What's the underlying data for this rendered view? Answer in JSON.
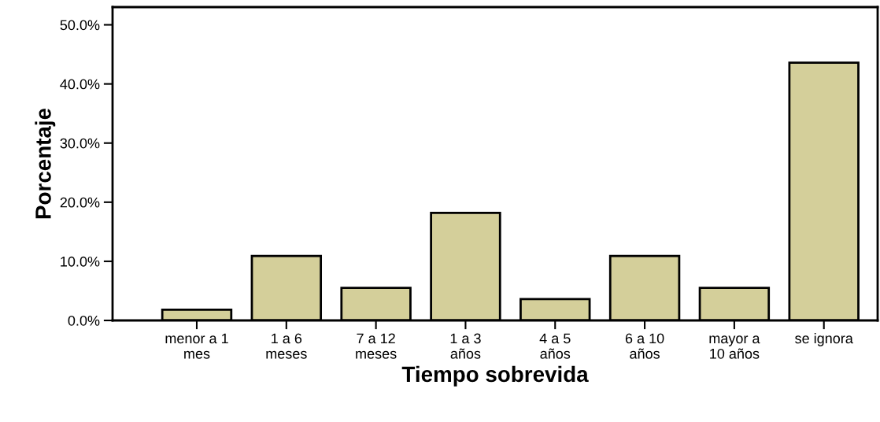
{
  "chart_data": {
    "type": "bar",
    "xlabel": "Tiempo sobrevida",
    "ylabel": "Porcentaje",
    "categories": [
      "menor a 1\nmes",
      "1 a 6\nmeses",
      "7 a 12\nmeses",
      "1 a 3\naños",
      "4 a 5\naños",
      "6 a 10\naños",
      "mayor a\n10 años",
      "se ignora"
    ],
    "values": [
      1.8,
      10.9,
      5.5,
      18.2,
      3.6,
      10.9,
      5.5,
      43.6
    ],
    "color": "#d4cf9a",
    "ylim": [
      0,
      53
    ],
    "yticks": [
      {
        "value": 0,
        "label": "0.0%"
      },
      {
        "value": 10,
        "label": "10.0%"
      },
      {
        "value": 20,
        "label": "20.0%"
      },
      {
        "value": 30,
        "label": "30.0%"
      },
      {
        "value": 40,
        "label": "40.0%"
      },
      {
        "value": 50,
        "label": "50.0%"
      }
    ],
    "grid": false,
    "legend": false
  }
}
